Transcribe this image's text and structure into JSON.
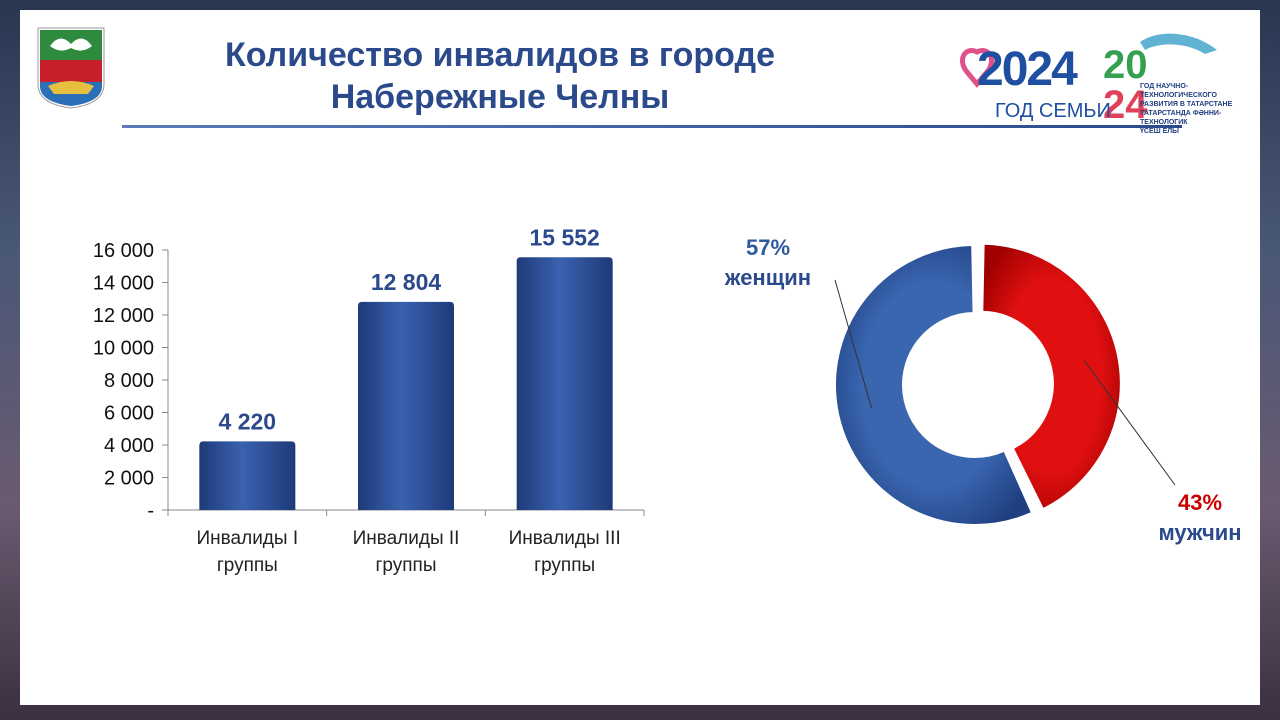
{
  "header": {
    "title_line1": "Количество инвалидов в городе",
    "title_line2": "Набережные Челны"
  },
  "logo": {
    "year_text": "2024",
    "family_text": "ГОД СЕМЬИ",
    "year2_top": "20",
    "year2_bottom": "24",
    "caption_lines": [
      "ГОД НАУЧНО-ТЕХНОЛОГИЧЕСКОГО",
      "РАЗВИТИЯ В ТАТАРСТАНЕ",
      "ТАТАРСТАНДА ФӘННИ-ТЕХНОЛОГИК",
      "ҮСЕШ ЕЛЫ"
    ]
  },
  "chart_data": [
    {
      "type": "bar",
      "categories": [
        [
          "Инвалиды I",
          "группы"
        ],
        [
          "Инвалиды II",
          "группы"
        ],
        [
          "Инвалиды III",
          "группы"
        ]
      ],
      "values": [
        4220,
        12804,
        15552
      ],
      "value_labels": [
        "4 220",
        "12 804",
        "15 552"
      ],
      "ylim": [
        0,
        16000
      ],
      "y_ticks": [
        0,
        2000,
        4000,
        6000,
        8000,
        10000,
        12000,
        14000,
        16000
      ],
      "y_tick_labels": [
        "-",
        "2 000",
        "4 000",
        "6 000",
        "8 000",
        "10 000",
        "12 000",
        "14 000",
        "16 000"
      ],
      "bar_color": "#2b4a8c"
    },
    {
      "type": "pie",
      "donut": true,
      "slices": [
        {
          "label": "мужчин",
          "percent_label": "43%",
          "value": 43,
          "color": "#cc0000"
        },
        {
          "label": "женщин",
          "percent_label": "57%",
          "value": 57,
          "color": "#2f5aa0"
        }
      ]
    }
  ]
}
